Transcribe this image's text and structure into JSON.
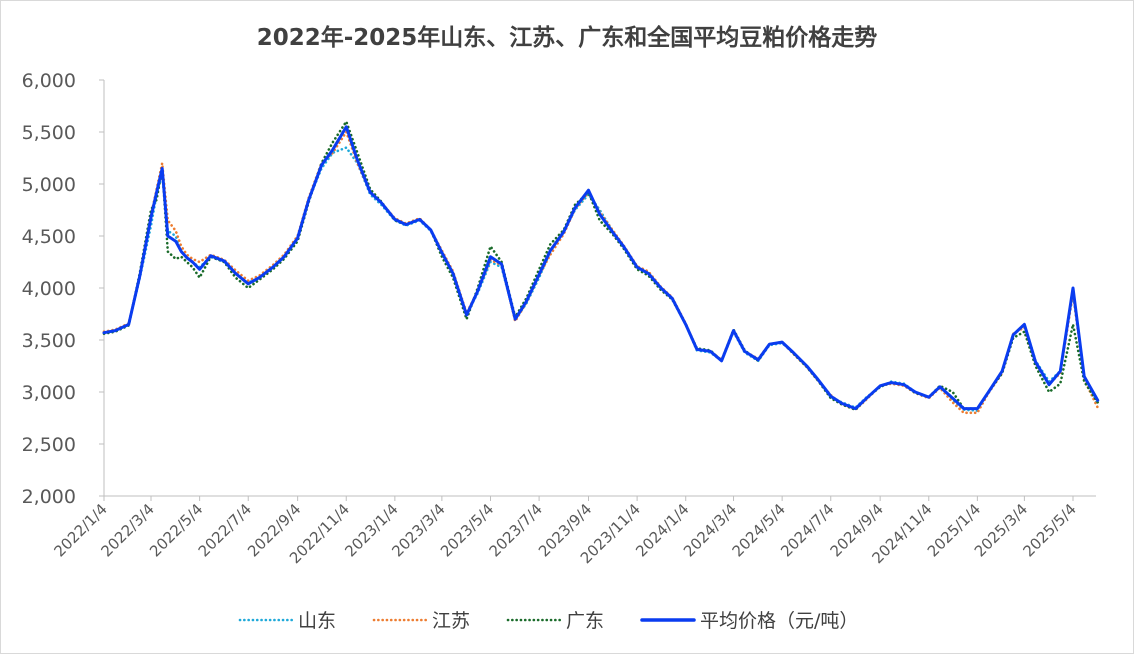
{
  "chart_data": {
    "type": "line",
    "title": "2022年-2025年山东、江苏、广东和全国平均豆粕价格走势",
    "xlabel": "",
    "ylabel": "",
    "ylim": [
      2000,
      6000
    ],
    "yticks": [
      "2,000",
      "2,500",
      "3,000",
      "3,500",
      "4,000",
      "4,500",
      "5,000",
      "5,500",
      "6,000"
    ],
    "x_tick_labels": [
      "2022/1/4",
      "2022/3/4",
      "2022/5/4",
      "2022/7/4",
      "2022/9/4",
      "2022/11/4",
      "2023/1/4",
      "2023/3/4",
      "2023/5/4",
      "2023/7/4",
      "2023/9/4",
      "2023/11/4",
      "2024/1/4",
      "2024/3/4",
      "2024/5/4",
      "2024/7/4",
      "2024/9/4",
      "2024/11/4",
      "2025/1/4",
      "2025/3/4",
      "2025/5/4"
    ],
    "x": [
      "2022/1/4",
      "2022/1/18",
      "2022/2/4",
      "2022/2/18",
      "2022/3/4",
      "2022/3/11",
      "2022/3/18",
      "2022/3/25",
      "2022/4/4",
      "2022/4/11",
      "2022/4/18",
      "2022/4/25",
      "2022/5/4",
      "2022/5/18",
      "2022/6/4",
      "2022/6/18",
      "2022/7/4",
      "2022/7/18",
      "2022/8/4",
      "2022/8/18",
      "2022/9/4",
      "2022/9/18",
      "2022/10/4",
      "2022/10/18",
      "2022/11/4",
      "2022/11/18",
      "2022/12/4",
      "2022/12/18",
      "2023/1/4",
      "2023/1/18",
      "2023/2/4",
      "2023/2/18",
      "2023/3/4",
      "2023/3/18",
      "2023/4/4",
      "2023/4/18",
      "2023/5/4",
      "2023/5/18",
      "2023/6/4",
      "2023/6/18",
      "2023/7/4",
      "2023/7/18",
      "2023/8/4",
      "2023/8/18",
      "2023/9/4",
      "2023/9/18",
      "2023/10/4",
      "2023/10/18",
      "2023/11/4",
      "2023/11/18",
      "2023/12/4",
      "2023/12/18",
      "2024/1/4",
      "2024/1/18",
      "2024/2/4",
      "2024/2/18",
      "2024/3/4",
      "2024/3/18",
      "2024/4/4",
      "2024/4/18",
      "2024/5/4",
      "2024/5/18",
      "2024/6/4",
      "2024/6/18",
      "2024/7/4",
      "2024/7/18",
      "2024/8/4",
      "2024/8/18",
      "2024/9/4",
      "2024/9/18",
      "2024/10/4",
      "2024/10/18",
      "2024/11/4",
      "2024/11/18",
      "2024/12/4",
      "2024/12/18",
      "2025/1/4",
      "2025/1/18",
      "2025/2/4",
      "2025/2/18",
      "2025/3/4",
      "2025/3/18",
      "2025/4/4",
      "2025/4/18",
      "2025/5/4",
      "2025/5/18",
      "2025/6/4"
    ],
    "series": [
      {
        "name": "山东",
        "color": "#1fa9d9",
        "style": "dotted",
        "values": [
          3570,
          3590,
          3650,
          4100,
          4600,
          4900,
          5100,
          4550,
          4500,
          4350,
          4300,
          4250,
          4200,
          4300,
          4250,
          4150,
          4050,
          4100,
          4200,
          4300,
          4480,
          4850,
          5150,
          5300,
          5350,
          5200,
          4900,
          4800,
          4650,
          4600,
          4650,
          4550,
          4350,
          4150,
          3750,
          3950,
          4250,
          4200,
          3700,
          3850,
          4100,
          4350,
          4550,
          4750,
          4900,
          4750,
          4550,
          4400,
          4200,
          4150,
          4000,
          3900,
          3650,
          3400,
          3380,
          3300,
          3580,
          3380,
          3300,
          3450,
          3470,
          3380,
          3250,
          3120,
          2950,
          2900,
          2850,
          2950,
          3050,
          3100,
          3080,
          3000,
          2950,
          3050,
          2920,
          2830,
          2820,
          3000,
          3200,
          3550,
          3650,
          3300,
          3100,
          3200,
          3950,
          3150,
          2870
        ]
      },
      {
        "name": "江苏",
        "color": "#ed7d31",
        "style": "dotted",
        "values": [
          3580,
          3600,
          3660,
          4120,
          4700,
          4950,
          5200,
          4650,
          4550,
          4400,
          4320,
          4280,
          4250,
          4320,
          4270,
          4170,
          4070,
          4120,
          4220,
          4320,
          4500,
          4870,
          5200,
          5300,
          5500,
          5200,
          4920,
          4820,
          4670,
          4620,
          4670,
          4560,
          4360,
          4160,
          3760,
          3970,
          4270,
          4220,
          3680,
          3860,
          4120,
          4320,
          4520,
          4760,
          4920,
          4730,
          4560,
          4410,
          4210,
          4160,
          4010,
          3910,
          3660,
          3410,
          3390,
          3310,
          3590,
          3390,
          3320,
          3460,
          3480,
          3370,
          3240,
          3110,
          2970,
          2880,
          2830,
          2930,
          3060,
          3080,
          3060,
          2990,
          2940,
          3040,
          2900,
          2800,
          2800,
          2990,
          3180,
          3560,
          3620,
          3280,
          3080,
          3180,
          3950,
          3120,
          2850
        ]
      },
      {
        "name": "广东",
        "color": "#1a6b2a",
        "style": "dotted",
        "values": [
          3560,
          3580,
          3640,
          4150,
          4750,
          4850,
          5150,
          4350,
          4280,
          4300,
          4250,
          4200,
          4100,
          4300,
          4250,
          4100,
          4000,
          4080,
          4180,
          4280,
          4450,
          4830,
          5200,
          5400,
          5600,
          5300,
          4950,
          4830,
          4650,
          4610,
          4660,
          4560,
          4300,
          4100,
          3700,
          4000,
          4400,
          4250,
          3720,
          3900,
          4180,
          4420,
          4560,
          4800,
          4920,
          4650,
          4520,
          4380,
          4180,
          4120,
          3980,
          3890,
          3650,
          3420,
          3400,
          3300,
          3600,
          3400,
          3300,
          3460,
          3480,
          3370,
          3240,
          3110,
          2940,
          2880,
          2830,
          2940,
          3050,
          3090,
          3070,
          2990,
          2950,
          3060,
          3000,
          2840,
          2840,
          3000,
          3180,
          3520,
          3580,
          3250,
          3000,
          3080,
          3650,
          3100,
          2900
        ]
      },
      {
        "name": "平均价格（元/吨）",
        "color": "#0a3cf0",
        "style": "solid",
        "values": [
          3570,
          3590,
          3650,
          4120,
          4680,
          4920,
          5150,
          4500,
          4450,
          4350,
          4290,
          4250,
          4180,
          4310,
          4260,
          4140,
          4040,
          4100,
          4200,
          4300,
          4480,
          4850,
          5180,
          5330,
          5550,
          5230,
          4920,
          4820,
          4660,
          4610,
          4660,
          4560,
          4340,
          4140,
          3740,
          3970,
          4300,
          4230,
          3700,
          3870,
          4130,
          4360,
          4540,
          4770,
          4940,
          4710,
          4540,
          4400,
          4200,
          4140,
          4000,
          3900,
          3650,
          3410,
          3390,
          3300,
          3590,
          3390,
          3310,
          3460,
          3480,
          3380,
          3250,
          3120,
          2960,
          2890,
          2840,
          2940,
          3060,
          3090,
          3070,
          3000,
          2950,
          3050,
          2940,
          2840,
          2840,
          3000,
          3200,
          3550,
          3650,
          3290,
          3070,
          3200,
          4000,
          3150,
          2920
        ]
      }
    ],
    "legend_position": "bottom",
    "grid": false
  }
}
